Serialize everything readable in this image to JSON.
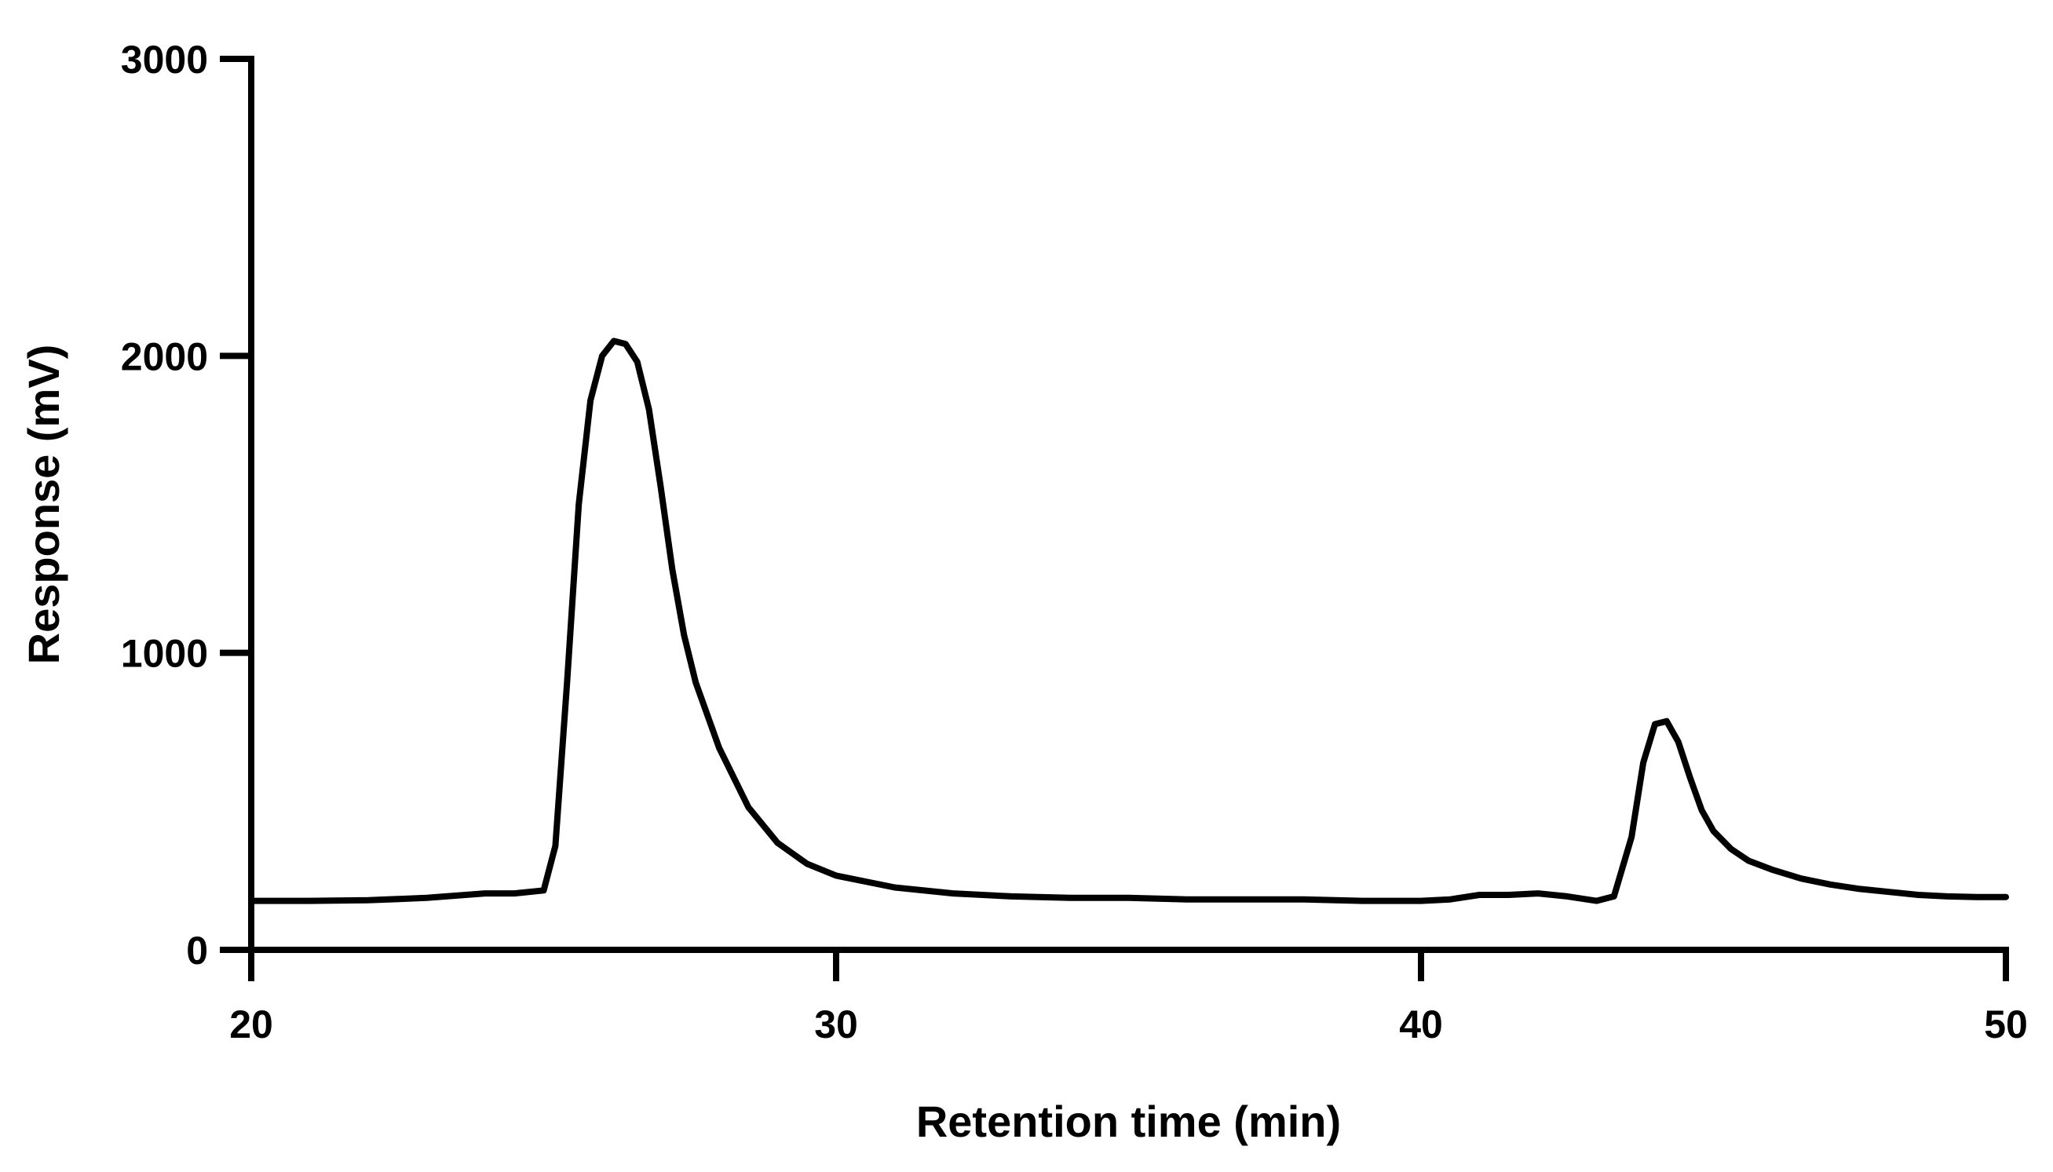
{
  "chart_data": {
    "type": "line",
    "title": "",
    "xlabel": "Retention time (min)",
    "ylabel": "Response (mV)",
    "xlim": [
      20,
      50
    ],
    "ylim": [
      0,
      3000
    ],
    "x_ticks": [
      20,
      30,
      40,
      50
    ],
    "y_ticks": [
      0,
      1000,
      2000,
      3000
    ],
    "x_tick_labels": [
      "20",
      "30",
      "40",
      "50"
    ],
    "y_tick_labels": [
      "0",
      "1000",
      "2000",
      "3000"
    ],
    "grid": false,
    "legend": "none",
    "line_color": "#000000",
    "series": [
      {
        "x": [
          20,
          21,
          22,
          23,
          24,
          24.5,
          25,
          25.2,
          25.4,
          25.6,
          25.8,
          26,
          26.2,
          26.4,
          26.6,
          26.8,
          27,
          27.2,
          27.4,
          27.6,
          28,
          28.5,
          29,
          29.5,
          30,
          31,
          32,
          33,
          34,
          35,
          36,
          37,
          38,
          39,
          40,
          40.5,
          41,
          41.5,
          42,
          42.5,
          43,
          43.3,
          43.6,
          43.8,
          44,
          44.2,
          44.4,
          44.6,
          44.8,
          45,
          45.3,
          45.6,
          46,
          46.5,
          47,
          47.5,
          48,
          48.5,
          49,
          49.5,
          50
        ],
        "y": [
          165,
          165,
          167,
          175,
          190,
          190,
          200,
          350,
          900,
          1500,
          1850,
          2000,
          2050,
          2040,
          1980,
          1820,
          1560,
          1280,
          1060,
          900,
          680,
          480,
          360,
          290,
          250,
          210,
          190,
          180,
          175,
          175,
          170,
          170,
          170,
          165,
          165,
          170,
          185,
          185,
          190,
          180,
          165,
          180,
          380,
          630,
          760,
          770,
          700,
          580,
          470,
          400,
          340,
          300,
          270,
          240,
          220,
          205,
          195,
          185,
          180,
          178,
          178
        ]
      }
    ]
  }
}
